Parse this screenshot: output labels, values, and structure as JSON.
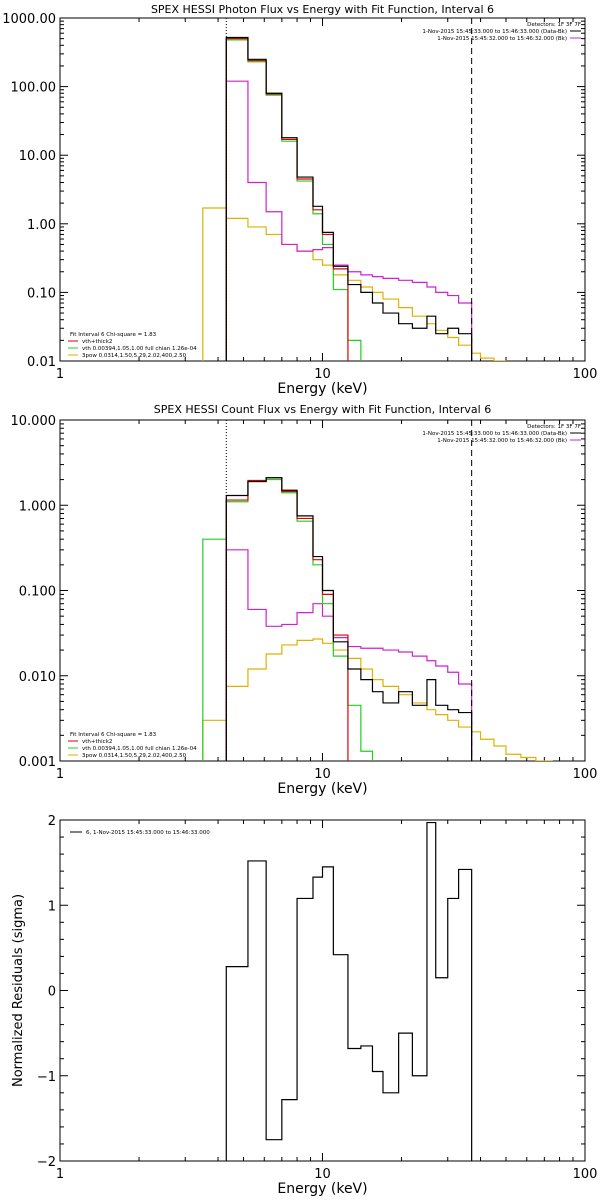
{
  "colors": {
    "black": "#000000",
    "red": "#e00000",
    "magenta": "#d020d0",
    "green": "#20d020",
    "yellow": "#e0b000"
  },
  "chart_data": [
    {
      "type": "line",
      "id": "photon",
      "title": "SPEX HESSI Photon Flux vs Energy with Fit Function, Interval 6",
      "xlabel": "Energy (keV)",
      "ylabel": "",
      "xscale": "log",
      "yscale": "log",
      "xlim": [
        1,
        100
      ],
      "ylim": [
        0.01,
        1000
      ],
      "x_ticks": [
        {
          "v": 1,
          "label": "1"
        },
        {
          "v": 10,
          "label": "10"
        },
        {
          "v": 100,
          "label": "100"
        }
      ],
      "y_ticks": [
        {
          "v": 0.01,
          "label": "0.01"
        },
        {
          "v": 0.1,
          "label": "0.10"
        },
        {
          "v": 1,
          "label": "1.00"
        },
        {
          "v": 10,
          "label": "10.00"
        },
        {
          "v": 100,
          "label": "100.00"
        },
        {
          "v": 1000,
          "label": "1000.00"
        }
      ],
      "vlines": [
        {
          "x": 4.3,
          "style": "dotted"
        },
        {
          "x": 37,
          "style": "dashed"
        }
      ],
      "legend_top": [
        "Detectors: 1F 3F 7F",
        "1-Nov-2015 15:45:33.000 to 15:46:33.000 (Data-Bk)",
        "1-Nov-2015 15:45:32.000 to 15:46:32.000 (Bk)"
      ],
      "legend_top_colors": [
        "",
        "black",
        "magenta"
      ],
      "legend_bottom": [
        "Fit Interval 6   Chi-square = 1.83",
        "vth+thick2",
        "vth 0.00394,1.05,1.00  full chian 1.26e-04",
        "3pow 0.0314,1.50,5.29,2.02,400,2.50"
      ],
      "legend_bottom_colors": [
        "",
        "red",
        "green",
        "yellow"
      ],
      "series": [
        {
          "name": "Data-Bk",
          "color": "black",
          "edges": [
            4.3,
            5.2,
            6.1,
            7.0,
            8.0,
            9.2,
            10.0,
            11.0,
            12.5,
            14.0,
            15.5,
            17.0,
            19.5,
            22.0,
            25.0,
            27.0,
            30.0,
            33.0,
            37.0
          ],
          "values": [
            520,
            250,
            80,
            18,
            4.8,
            1.8,
            0.75,
            0.24,
            0.13,
            0.1,
            0.07,
            0.05,
            0.035,
            0.03,
            0.045,
            0.025,
            0.03,
            0.025
          ]
        },
        {
          "name": "Bk",
          "color": "magenta",
          "edges": [
            4.3,
            5.2,
            6.1,
            7.0,
            8.0,
            9.2,
            10.0,
            11.0,
            12.5,
            14.0,
            15.5,
            17.0,
            19.5,
            22.0,
            25.0,
            27.0,
            30.0,
            33.0,
            37.0
          ],
          "values": [
            120,
            4.0,
            1.5,
            0.5,
            0.4,
            0.42,
            0.45,
            0.25,
            0.2,
            0.18,
            0.17,
            0.16,
            0.15,
            0.14,
            0.12,
            0.1,
            0.09,
            0.07
          ]
        },
        {
          "name": "vth+thick2",
          "color": "red",
          "edges": [
            4.3,
            5.2,
            6.1,
            7.0,
            8.0,
            9.2,
            10.0,
            11.0,
            12.5
          ],
          "values": [
            500,
            240,
            78,
            17,
            4.5,
            1.6,
            0.7,
            0.22
          ]
        },
        {
          "name": "vth",
          "color": "green",
          "edges": [
            4.3,
            5.2,
            6.1,
            7.0,
            8.0,
            9.2,
            10.0,
            11.0,
            12.5,
            14.0
          ],
          "values": [
            480,
            230,
            75,
            16,
            4.2,
            1.4,
            0.5,
            0.11,
            0.02
          ]
        },
        {
          "name": "3pow",
          "color": "yellow",
          "edges": [
            3.5,
            4.3,
            5.2,
            6.1,
            7.0,
            8.0,
            9.2,
            10.0,
            11.0,
            12.5,
            14.0,
            15.5,
            17.0,
            19.5,
            22.0,
            25.0,
            27.0,
            30.0,
            33.0,
            37.0,
            40.0,
            45.0,
            50.0
          ],
          "values": [
            1.7,
            1.2,
            0.9,
            0.7,
            0.5,
            0.4,
            0.3,
            0.25,
            0.18,
            0.15,
            0.12,
            0.1,
            0.08,
            0.06,
            0.045,
            0.035,
            0.028,
            0.022,
            0.017,
            0.013,
            0.011,
            0.01
          ]
        }
      ]
    },
    {
      "type": "line",
      "id": "count",
      "title": "SPEX HESSI Count Flux vs Energy with Fit Function, Interval 6",
      "xlabel": "Energy (keV)",
      "ylabel": "",
      "xscale": "log",
      "yscale": "log",
      "xlim": [
        1,
        100
      ],
      "ylim": [
        0.001,
        10
      ],
      "x_ticks": [
        {
          "v": 1,
          "label": "1"
        },
        {
          "v": 10,
          "label": "10"
        },
        {
          "v": 100,
          "label": "100"
        }
      ],
      "y_ticks": [
        {
          "v": 0.001,
          "label": "0.001"
        },
        {
          "v": 0.01,
          "label": "0.010"
        },
        {
          "v": 0.1,
          "label": "0.100"
        },
        {
          "v": 1,
          "label": "1.000"
        },
        {
          "v": 10,
          "label": "10.000"
        }
      ],
      "vlines": [
        {
          "x": 4.3,
          "style": "dotted"
        },
        {
          "x": 37,
          "style": "dashed"
        }
      ],
      "legend_top": [
        "Detectors: 1F 3F 7F",
        "1-Nov-2015 15:45:33.000 to 15:46:33.000 (Data-Bk)",
        "1-Nov-2015 15:45:32.000 to 15:46:32.000 (Bk)"
      ],
      "legend_top_colors": [
        "",
        "black",
        "magenta"
      ],
      "legend_bottom": [
        "Fit Interval 6   Chi-square = 1.83",
        "vth+thick2",
        "vth 0.00394,1.05,1.00  full chian 1.26e-04",
        "3pow 0.0314,1.50,5.29,2.02,400,2.50"
      ],
      "legend_bottom_colors": [
        "",
        "red",
        "green",
        "yellow"
      ],
      "series": [
        {
          "name": "Data-Bk",
          "color": "black",
          "edges": [
            4.3,
            5.2,
            6.1,
            7.0,
            8.0,
            9.2,
            10.0,
            11.0,
            12.5,
            14.0,
            15.5,
            17.0,
            19.5,
            22.0,
            25.0,
            27.0,
            30.0,
            33.0,
            37.0
          ],
          "values": [
            1.3,
            1.9,
            2.1,
            1.5,
            0.75,
            0.25,
            0.1,
            0.025,
            0.012,
            0.009,
            0.0065,
            0.0048,
            0.0065,
            0.0045,
            0.009,
            0.0045,
            0.004,
            0.0037
          ]
        },
        {
          "name": "Bk",
          "color": "magenta",
          "edges": [
            4.3,
            5.2,
            6.1,
            7.0,
            8.0,
            9.2,
            10.0,
            11.0,
            12.5,
            14.0,
            15.5,
            17.0,
            19.5,
            22.0,
            25.0,
            27.0,
            30.0,
            33.0,
            37.0
          ],
          "values": [
            0.3,
            0.06,
            0.038,
            0.04,
            0.055,
            0.07,
            0.05,
            0.028,
            0.022,
            0.021,
            0.021,
            0.02,
            0.019,
            0.017,
            0.015,
            0.013,
            0.011,
            0.008
          ]
        },
        {
          "name": "vth+thick2",
          "color": "red",
          "edges": [
            4.3,
            5.2,
            6.1,
            7.0,
            8.0,
            9.2,
            10.0,
            11.0,
            12.5
          ],
          "values": [
            1.15,
            1.95,
            2.1,
            1.45,
            0.7,
            0.23,
            0.09,
            0.03
          ]
        },
        {
          "name": "vth",
          "color": "green",
          "edges": [
            3.5,
            4.3,
            5.2,
            6.1,
            7.0,
            8.0,
            9.2,
            10.0,
            11.0,
            12.5,
            14.0,
            15.5
          ],
          "values": [
            0.4,
            1.1,
            1.9,
            2.0,
            1.4,
            0.65,
            0.2,
            0.07,
            0.017,
            0.0045,
            0.0013
          ]
        },
        {
          "name": "3pow",
          "color": "yellow",
          "edges": [
            3.5,
            4.3,
            5.2,
            6.1,
            7.0,
            8.0,
            9.2,
            10.0,
            11.0,
            12.5,
            14.0,
            15.5,
            17.0,
            19.5,
            22.0,
            25.0,
            27.0,
            30.0,
            33.0,
            37.0,
            40.0,
            45.0,
            50.0,
            57.0,
            65.0,
            75.0
          ],
          "values": [
            0.003,
            0.0075,
            0.012,
            0.018,
            0.023,
            0.026,
            0.027,
            0.024,
            0.02,
            0.016,
            0.012,
            0.009,
            0.0075,
            0.006,
            0.0048,
            0.004,
            0.0035,
            0.003,
            0.0025,
            0.0022,
            0.0018,
            0.0015,
            0.0012,
            0.0011,
            0.001
          ]
        }
      ]
    },
    {
      "type": "line",
      "id": "resid",
      "title": "",
      "xlabel": "Energy (keV)",
      "ylabel": "Normalized Residuals (sigma)",
      "xscale": "log",
      "yscale": "linear",
      "xlim": [
        1,
        100
      ],
      "ylim": [
        -2,
        2
      ],
      "x_ticks": [
        {
          "v": 1,
          "label": "1"
        },
        {
          "v": 10,
          "label": "10"
        },
        {
          "v": 100,
          "label": "100"
        }
      ],
      "y_ticks": [
        {
          "v": -2,
          "label": "−2"
        },
        {
          "v": -1,
          "label": "−1"
        },
        {
          "v": 0,
          "label": "0"
        },
        {
          "v": 1,
          "label": "1"
        },
        {
          "v": 2,
          "label": "2"
        }
      ],
      "vlines": [],
      "legend_top": [],
      "legend_top_colors": [],
      "legend_bottom": [],
      "legend_bottom_colors": [],
      "inset_legend": "6,  1-Nov-2015 15:45:33.000 to 15:46:33.000",
      "series": [
        {
          "name": "Residuals",
          "color": "black",
          "edges": [
            4.3,
            5.2,
            6.1,
            7.0,
            8.0,
            9.2,
            10.0,
            11.0,
            12.5,
            14.0,
            15.5,
            17.0,
            19.5,
            22.0,
            25.0,
            27.0,
            30.0,
            33.0,
            37.0
          ],
          "values": [
            0.28,
            1.52,
            -1.75,
            -1.28,
            1.08,
            1.33,
            1.45,
            0.42,
            -0.68,
            -0.65,
            -0.95,
            -1.2,
            -0.5,
            -1.0,
            1.97,
            0.15,
            1.08,
            1.42
          ]
        }
      ]
    }
  ]
}
